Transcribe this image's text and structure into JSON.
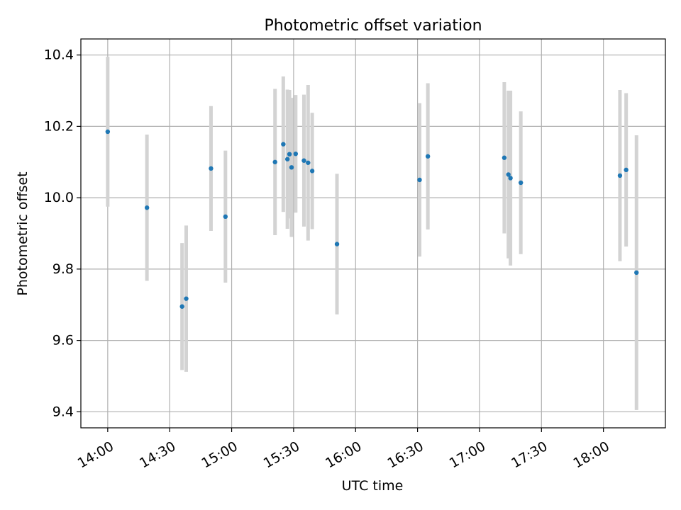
{
  "chart_data": {
    "type": "scatter",
    "title": "Photometric offset variation",
    "xlabel": "UTC time",
    "ylabel": "Photometric offset",
    "grid": true,
    "x_ticks": [
      "14:00",
      "14:30",
      "15:00",
      "15:30",
      "16:00",
      "16:30",
      "17:00",
      "17:30",
      "18:00"
    ],
    "y_ticks": [
      "9.4",
      "9.6",
      "9.8",
      "10.0",
      "10.2",
      "10.4"
    ],
    "xlim": [
      "13:47",
      "18:30"
    ],
    "ylim": [
      9.355,
      10.445
    ],
    "colors": {
      "point": "#1f77b4",
      "errorbar": "#d3d3d3",
      "grid": "#b0b0b0"
    },
    "points": [
      {
        "x": "14:00",
        "y": 10.185,
        "yerr": 0.21
      },
      {
        "x": "14:19",
        "y": 9.972,
        "yerr": 0.205
      },
      {
        "x": "14:36",
        "y": 9.695,
        "yerr": 0.178
      },
      {
        "x": "14:38",
        "y": 9.717,
        "yerr": 0.205
      },
      {
        "x": "14:50",
        "y": 10.082,
        "yerr": 0.175
      },
      {
        "x": "14:57",
        "y": 9.947,
        "yerr": 0.185
      },
      {
        "x": "15:21",
        "y": 10.1,
        "yerr": 0.205
      },
      {
        "x": "15:25",
        "y": 10.15,
        "yerr": 0.19
      },
      {
        "x": "15:27",
        "y": 10.108,
        "yerr": 0.195
      },
      {
        "x": "15:28",
        "y": 10.122,
        "yerr": 0.18
      },
      {
        "x": "15:29",
        "y": 10.085,
        "yerr": 0.195
      },
      {
        "x": "15:31",
        "y": 10.123,
        "yerr": 0.165
      },
      {
        "x": "15:35",
        "y": 10.104,
        "yerr": 0.185
      },
      {
        "x": "15:37",
        "y": 10.098,
        "yerr": 0.218
      },
      {
        "x": "15:39",
        "y": 10.075,
        "yerr": 0.163
      },
      {
        "x": "15:51",
        "y": 9.87,
        "yerr": 0.197
      },
      {
        "x": "16:31",
        "y": 10.05,
        "yerr": 0.215
      },
      {
        "x": "16:35",
        "y": 10.116,
        "yerr": 0.205
      },
      {
        "x": "17:12",
        "y": 10.112,
        "yerr": 0.212
      },
      {
        "x": "17:14",
        "y": 10.065,
        "yerr": 0.235
      },
      {
        "x": "17:15",
        "y": 10.055,
        "yerr": 0.245
      },
      {
        "x": "17:20",
        "y": 10.042,
        "yerr": 0.2
      },
      {
        "x": "18:08",
        "y": 10.062,
        "yerr": 0.24
      },
      {
        "x": "18:11",
        "y": 10.078,
        "yerr": 0.215
      },
      {
        "x": "18:16",
        "y": 9.79,
        "yerr": 0.385
      }
    ]
  }
}
